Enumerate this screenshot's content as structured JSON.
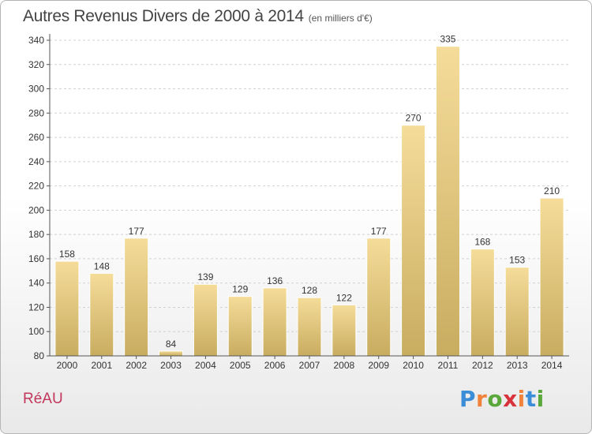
{
  "header": {
    "title": "Autres Revenus Divers de 2000 à 2014",
    "subtitle": "(en milliers d'€)"
  },
  "footer": {
    "commune": "RéAU",
    "brand": "Proxiti"
  },
  "colors": {
    "bar_light": "#f5dc99",
    "bar_dark": "#c8ac60",
    "axis": "#555555",
    "grid": "#d0d0d0",
    "commune": "#c2375c",
    "brand_letters": [
      "#3a8dd6",
      "#f0823c",
      "#5aa83a",
      "#d8323c",
      "#f0823c",
      "#3a8dd6",
      "#5aa83a"
    ]
  },
  "chart_data": {
    "type": "bar",
    "title": "Autres Revenus Divers de 2000 à 2014",
    "subtitle": "(en milliers d'€)",
    "categories": [
      "2000",
      "2001",
      "2002",
      "2003",
      "2004",
      "2005",
      "2006",
      "2007",
      "2008",
      "2009",
      "2010",
      "2011",
      "2012",
      "2013",
      "2014"
    ],
    "values": [
      158,
      148,
      177,
      84,
      139,
      129,
      136,
      128,
      122,
      177,
      270,
      335,
      168,
      153,
      210
    ],
    "ylim": [
      80,
      340
    ],
    "yticks": [
      80,
      100,
      120,
      140,
      160,
      180,
      200,
      220,
      240,
      260,
      280,
      300,
      320,
      340
    ],
    "grid": "horizontal dashed",
    "xlabel": "",
    "ylabel": ""
  }
}
